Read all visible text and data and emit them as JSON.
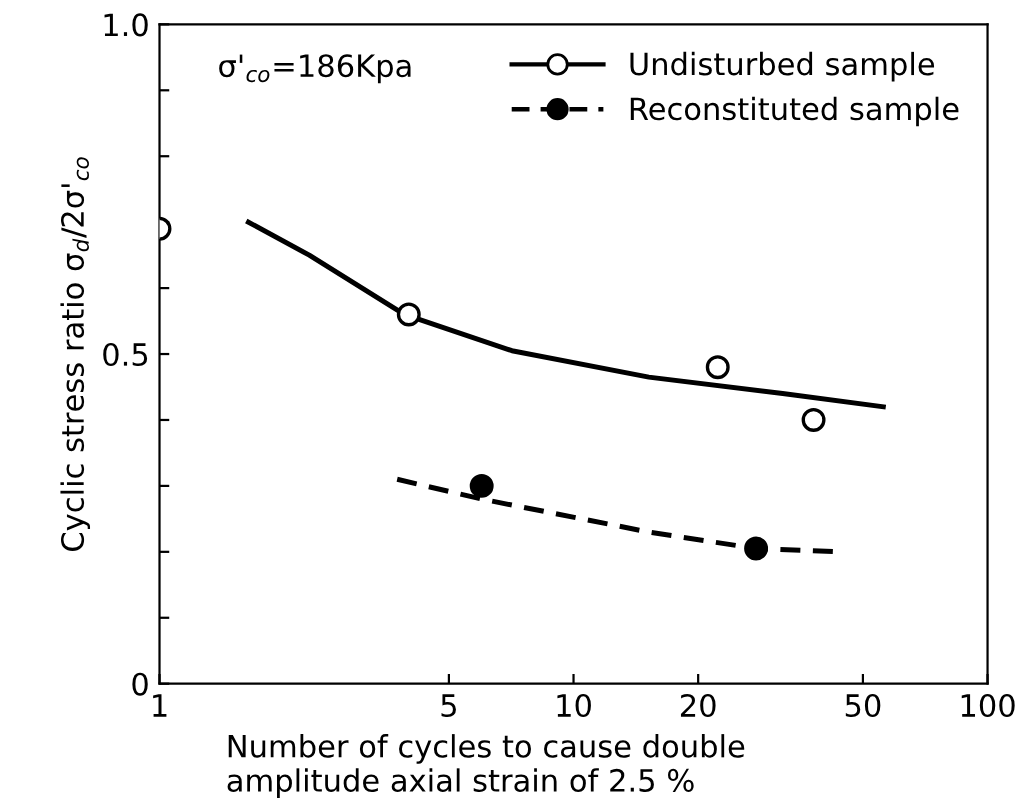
{
  "chart_data": {
    "type": "scatter",
    "xlabel": "Number of cycles to cause double\namplitude axial strain of 2.5 %",
    "ylabel": "Cyclic stress ratio σ$_{d}$/2σ'$_{co}$",
    "annotations": [
      "σ'$_{co}$=186Kpa"
    ],
    "log": "x",
    "xlim": [
      1,
      100
    ],
    "xticks": [
      1,
      5,
      10,
      20,
      50,
      100
    ],
    "ylim": [
      0,
      1
    ],
    "yticks": [
      0,
      {
        "value": 0.1,
        "label": null
      },
      {
        "value": 0.2,
        "label": null
      },
      {
        "value": 0.3,
        "label": null
      },
      {
        "value": 0.4,
        "label": null
      },
      {
        "value": 0.5,
        "label": "0.5"
      },
      {
        "value": 0.6,
        "label": null
      },
      {
        "value": 0.7,
        "label": null
      },
      {
        "value": 0.8,
        "label": null
      },
      {
        "value": 0.9,
        "label": null
      },
      {
        "value": 1,
        "label": "1.0"
      }
    ],
    "grid": false,
    "legend": "top right",
    "series": [
      {
        "name": "Undisturbed sample",
        "marker": "circle",
        "color": "#ffffff",
        "x": [
          1,
          4,
          22.3,
          38
        ],
        "values": [
          0.69,
          0.56,
          0.48,
          0.4
        ]
      },
      {
        "type": "line",
        "line_style": "solid",
        "color": "#000000",
        "x": [
          1.64,
          2.3,
          3.9,
          7.1,
          15.2,
          32,
          56
        ],
        "values": [
          0.7,
          0.65,
          0.56,
          0.505,
          0.465,
          0.44,
          0.42
        ]
      },
      {
        "name": "Reconstituted sample",
        "marker": "circle",
        "color": "#000000",
        "x": [
          6,
          27.6
        ],
        "values": [
          0.3,
          0.205
        ]
      },
      {
        "type": "line",
        "line_style": "dashed",
        "color": "#000000",
        "x": [
          3.75,
          6,
          15.2,
          27.6,
          44
        ],
        "values": [
          0.31,
          0.28,
          0.23,
          0.205,
          0.2
        ]
      }
    ]
  }
}
